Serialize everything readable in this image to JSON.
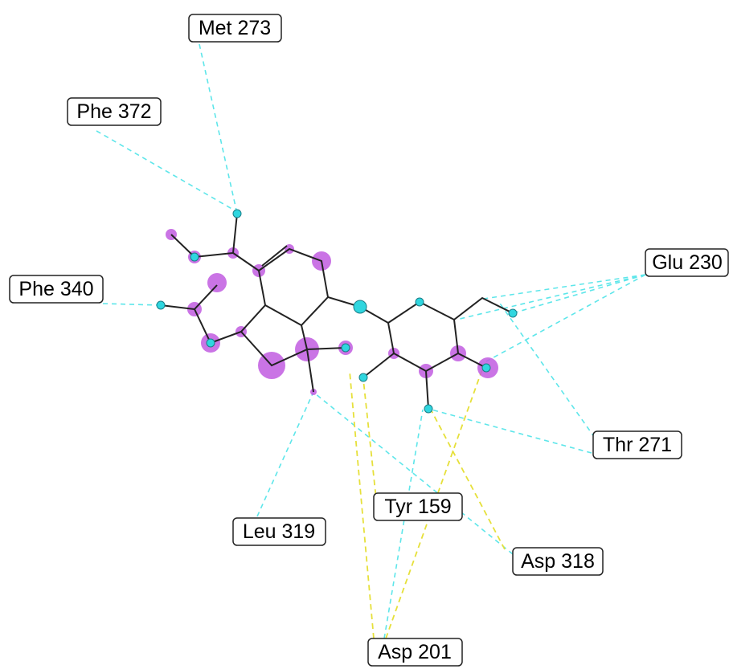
{
  "nodes": [
    {
      "label": "Met 273"
    },
    {
      "label": "Phe 372"
    },
    {
      "label": "Phe 340"
    },
    {
      "label": "Glu 230"
    },
    {
      "label": "Thr 271"
    },
    {
      "label": "Tyr 159"
    },
    {
      "label": "Leu 319"
    },
    {
      "label": "Asp 318"
    },
    {
      "label": "Asp 201"
    }
  ]
}
